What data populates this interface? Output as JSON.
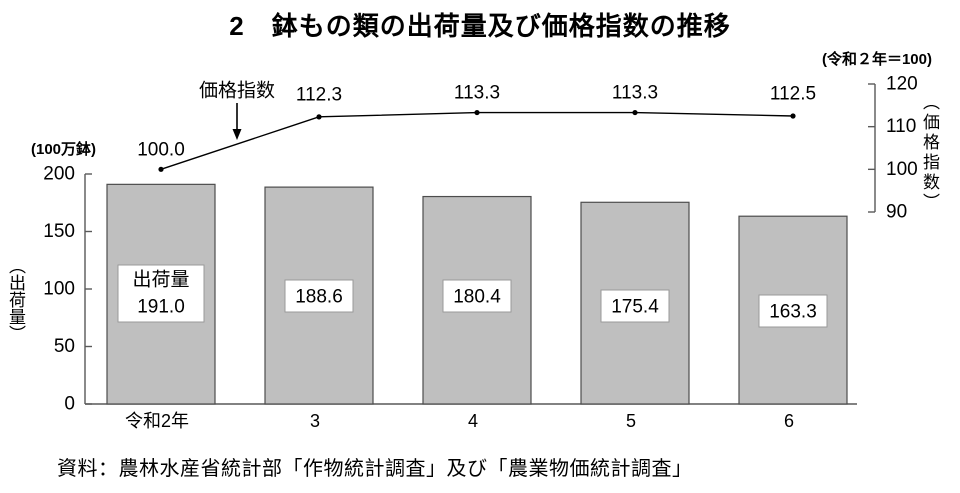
{
  "title": "2　鉢もの類の出荷量及び価格指数の推移",
  "source": "資料：農林水産省統計部「作物統計調査」及び「農業物価統計調査」",
  "chart_data": {
    "type": "bar+line combo",
    "categories": [
      "令和2年",
      "3",
      "4",
      "5",
      "6"
    ],
    "series": [
      {
        "name": "出荷量",
        "type": "bar",
        "axis": "left",
        "values": [
          191.0,
          188.6,
          180.4,
          175.4,
          163.3
        ]
      },
      {
        "name": "価格指数",
        "type": "line",
        "axis": "right",
        "values": [
          100.0,
          112.3,
          113.3,
          113.3,
          112.5
        ]
      }
    ],
    "left_axis": {
      "unit_label": "(100万鉢)",
      "title": "（出荷量）",
      "ticks": [
        0,
        50,
        100,
        150,
        200
      ],
      "range": [
        0,
        200
      ]
    },
    "right_axis": {
      "note": "(令和２年＝100)",
      "title": "（価格指数）",
      "ticks": [
        90,
        100,
        110,
        120
      ],
      "range": [
        90,
        120
      ]
    },
    "legend_position": "annotation-arrow-on-line",
    "grid": false,
    "colors": {
      "bar_fill": "#bfbfbf",
      "bar_border": "#4d4d4d",
      "line": "#000000",
      "axis": "#595959",
      "label_box_bg": "#ffffff",
      "label_box_border": "#9a9a9a",
      "text": "#000000"
    }
  }
}
